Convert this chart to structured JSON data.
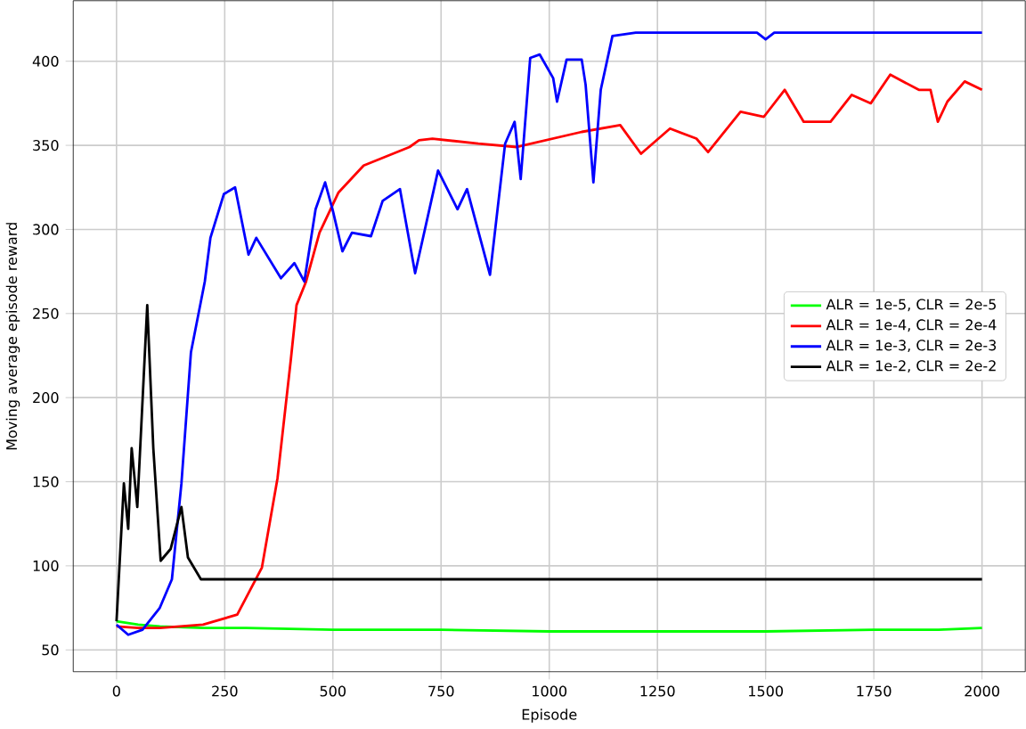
{
  "chart_data": {
    "type": "line",
    "xlabel": "Episode",
    "ylabel": "Moving average episode reward",
    "xlim": [
      -100,
      2100
    ],
    "ylim": [
      37,
      436
    ],
    "xticks": [
      0,
      250,
      500,
      750,
      1000,
      1250,
      1500,
      1750,
      2000
    ],
    "yticks": [
      50,
      100,
      150,
      200,
      250,
      300,
      350,
      400
    ],
    "grid": true,
    "legend": "right",
    "marker": "none",
    "line_style": "solid",
    "series": [
      {
        "name": "ALR = 1e-5, CLR = 2e-5",
        "color": "#00ff00",
        "x": [
          0,
          50,
          100,
          200,
          300,
          500,
          750,
          1000,
          1250,
          1500,
          1750,
          1900,
          2000
        ],
        "values": [
          67,
          65,
          64,
          63,
          63,
          62,
          62,
          61,
          61,
          61,
          62,
          62,
          63
        ]
      },
      {
        "name": "ALR = 1e-4, CLR = 2e-4",
        "color": "#ff0000",
        "x": [
          0,
          50,
          100,
          200,
          279,
          336,
          372,
          403,
          416,
          438,
          469,
          513,
          571,
          677,
          699,
          730,
          836,
          925,
          1075,
          1164,
          1212,
          1279,
          1340,
          1367,
          1442,
          1496,
          1544,
          1588,
          1650,
          1699,
          1743,
          1788,
          1854,
          1881,
          1898,
          1920,
          1960,
          2000
        ],
        "values": [
          64,
          63,
          63,
          65,
          71,
          99,
          152,
          223,
          255,
          269,
          298,
          322,
          338,
          349,
          353,
          354,
          351,
          349,
          358,
          362,
          345,
          360,
          354,
          346,
          370,
          367,
          383,
          364,
          364,
          380,
          375,
          392,
          383,
          383,
          364,
          376,
          388,
          383
        ]
      },
      {
        "name": "ALR = 1e-3, CLR = 2e-3",
        "color": "#0000ff",
        "x": [
          0,
          27,
          60,
          100,
          128,
          150,
          172,
          204,
          217,
          248,
          274,
          305,
          323,
          380,
          411,
          434,
          460,
          482,
          500,
          522,
          544,
          588,
          615,
          655,
          690,
          743,
          788,
          810,
          863,
          898,
          920,
          934,
          956,
          978,
          1009,
          1018,
          1040,
          1075,
          1084,
          1102,
          1119,
          1146,
          1200,
          1480,
          1500,
          1520,
          2000
        ],
        "values": [
          65,
          59,
          62,
          75,
          92,
          149,
          227,
          269,
          295,
          321,
          325,
          285,
          295,
          271,
          280,
          269,
          312,
          328,
          311,
          287,
          298,
          296,
          317,
          324,
          274,
          335,
          312,
          324,
          273,
          351,
          364,
          330,
          402,
          404,
          390,
          376,
          401,
          401,
          386,
          328,
          383,
          415,
          417,
          417,
          413,
          417,
          417
        ]
      },
      {
        "name": "ALR = 1e-2, CLR = 2e-2",
        "color": "#000000",
        "x": [
          0,
          17,
          27,
          35,
          48,
          71,
          85,
          102,
          125,
          150,
          165,
          195,
          2000
        ],
        "values": [
          67,
          149,
          122,
          170,
          135,
          255,
          170,
          103,
          110,
          135,
          105,
          92,
          92
        ]
      }
    ]
  }
}
